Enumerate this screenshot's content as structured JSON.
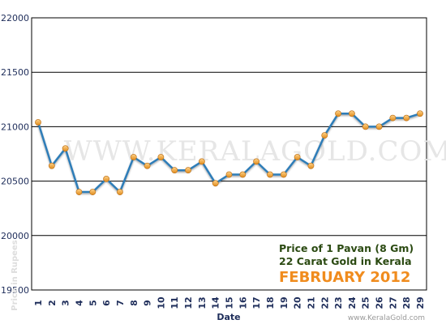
{
  "chart_data": {
    "type": "line",
    "x": [
      "1",
      "2",
      "3",
      "4",
      "5",
      "6",
      "7",
      "8",
      "9",
      "10",
      "11",
      "12",
      "13",
      "14",
      "15",
      "16",
      "17",
      "18",
      "19",
      "20",
      "21",
      "22",
      "23",
      "24",
      "25",
      "26",
      "27",
      "28",
      "29"
    ],
    "values": [
      21040,
      20640,
      20800,
      20400,
      20400,
      20520,
      20400,
      20720,
      20640,
      20720,
      20600,
      20600,
      20680,
      20480,
      20560,
      20560,
      20680,
      20560,
      20560,
      20720,
      20640,
      20920,
      21120,
      21120,
      21000,
      21000,
      21080,
      21080,
      21120
    ],
    "ylim": [
      19500,
      22000
    ],
    "yticks": [
      "19500",
      "20000",
      "20500",
      "21000",
      "21500",
      "22000"
    ],
    "xlabel": "Date",
    "ylabel": "Price in Rupees",
    "grid": true,
    "watermark": "WWW.KERALAGOLD.COM",
    "caption": {
      "line1": "Price of 1 Pavan (8 Gm)",
      "line2": "22 Carat Gold in Kerala",
      "line3": "FEBRUARY 2012"
    },
    "footer": "www.KeralaGold.com",
    "colors": {
      "line": "#2e7db8",
      "marker": "#f0a030",
      "caption": "#2b4a12",
      "month": "#f08c1e"
    }
  }
}
